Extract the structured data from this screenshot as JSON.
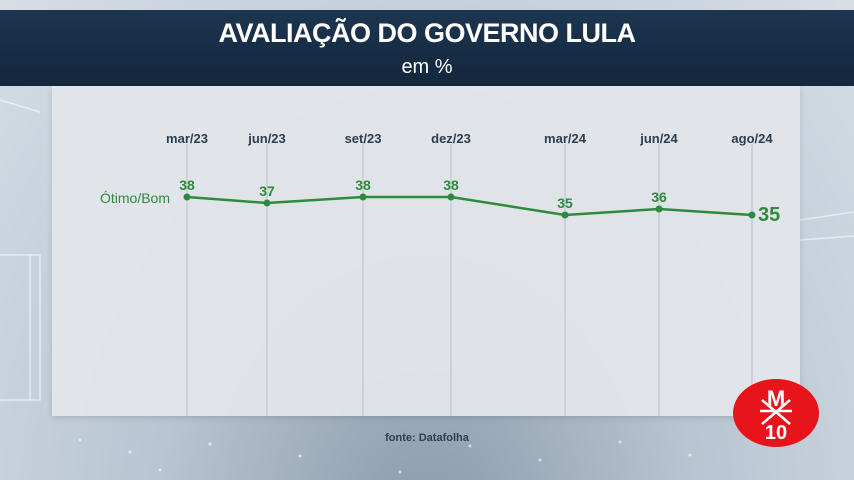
{
  "header": {
    "title": "AVALIAÇÃO DO GOVERNO LULA",
    "subtitle": "em %"
  },
  "chart_data": {
    "type": "line",
    "categories": [
      "mar/23",
      "jun/23",
      "set/23",
      "dez/23",
      "mar/24",
      "jun/24",
      "ago/24"
    ],
    "series": [
      {
        "name": "Ótimo/Bom",
        "values": [
          38,
          37,
          38,
          38,
          35,
          36,
          35
        ],
        "color": "#2e8b3e"
      }
    ],
    "title": "AVALIAÇÃO DO GOVERNO LULA",
    "subtitle": "em %",
    "xlabel": "",
    "ylabel": "",
    "ylim": [
      0,
      40
    ],
    "grid": "vertical",
    "x_axis_position": "top"
  },
  "footer": {
    "source": "fonte: Datafolha"
  },
  "logo": {
    "top_text": "M",
    "bottom_text": "10",
    "color": "#e8141c"
  }
}
